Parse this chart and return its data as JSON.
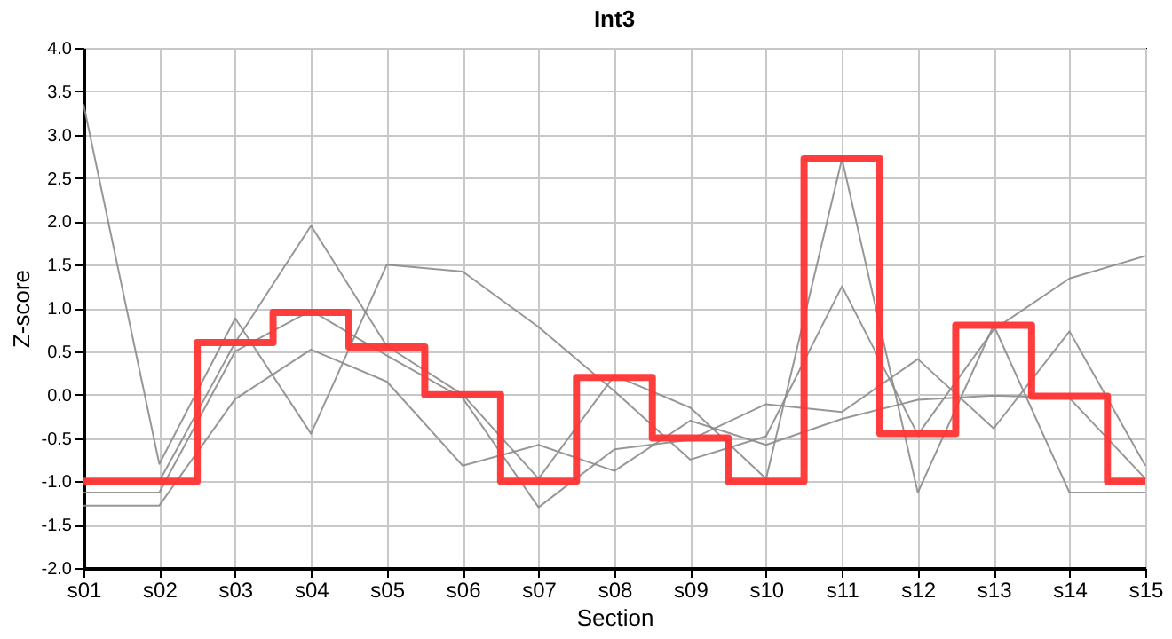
{
  "chart_data": {
    "type": "line",
    "title": "Int3",
    "xlabel": "Section",
    "ylabel": "Z-score",
    "categories": [
      "s01",
      "s02",
      "s03",
      "s04",
      "s05",
      "s06",
      "s07",
      "s08",
      "s09",
      "s10",
      "s11",
      "s12",
      "s13",
      "s14",
      "s15"
    ],
    "series": [
      {
        "color": "#8c8c8c",
        "values": [
          3.35,
          -0.8,
          0.88,
          -0.45,
          1.5,
          1.42,
          0.78,
          0.04,
          -0.75,
          -0.48,
          1.25,
          -0.46,
          0.75,
          1.34,
          1.6
        ]
      },
      {
        "color": "#8c8c8c",
        "values": [
          -1.0,
          -1.0,
          0.6,
          1.95,
          0.56,
          0.0,
          -0.97,
          0.22,
          -0.15,
          -0.97,
          2.72,
          -1.13,
          0.8,
          -1.13,
          -1.13
        ]
      },
      {
        "color": "#8c8c8c",
        "values": [
          -1.13,
          -1.13,
          0.5,
          0.97,
          0.45,
          -0.04,
          -1.3,
          -0.63,
          -0.52,
          -0.11,
          -0.2,
          0.41,
          -0.39,
          0.73,
          -0.82
        ]
      },
      {
        "color": "#8c8c8c",
        "values": [
          -1.28,
          -1.28,
          -0.05,
          0.52,
          0.15,
          -0.82,
          -0.58,
          -0.88,
          -0.3,
          -0.58,
          -0.28,
          -0.06,
          -0.01,
          -0.04,
          -0.97
        ]
      },
      {
        "type": "step",
        "color": "#ff3333",
        "values": [
          -1.0,
          -1.0,
          0.6,
          0.95,
          0.55,
          0.0,
          -1.0,
          0.2,
          -0.5,
          -1.0,
          2.72,
          -0.45,
          0.8,
          -0.02,
          -1.0
        ]
      }
    ],
    "ylim": [
      -2.0,
      4.0
    ],
    "yticks": [
      {
        "value": -2,
        "label": "-2.0"
      },
      {
        "value": -1.5,
        "label": "-1.5"
      },
      {
        "value": -1,
        "label": "-1.0"
      },
      {
        "value": -0.5,
        "label": "-0.5"
      },
      {
        "value": 0,
        "label": "0.0"
      },
      {
        "value": 0.5,
        "label": "0.5"
      },
      {
        "value": 1,
        "label": "1.0"
      },
      {
        "value": 1.5,
        "label": "1.5"
      },
      {
        "value": 2,
        "label": "2.0"
      },
      {
        "value": 2.5,
        "label": "2.5"
      },
      {
        "value": 3,
        "label": "3.0"
      },
      {
        "value": 3.5,
        "label": "3.5"
      },
      {
        "value": 4,
        "label": "4.0"
      }
    ],
    "grid": true
  }
}
